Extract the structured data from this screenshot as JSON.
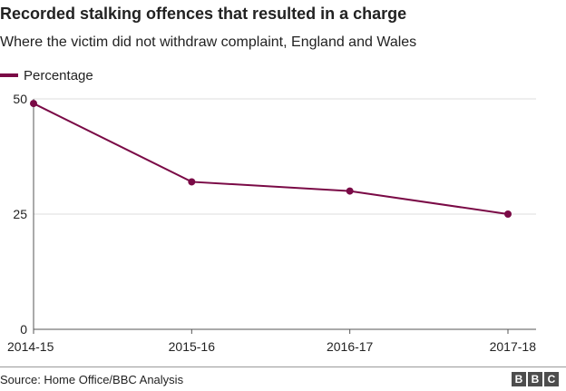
{
  "header": {
    "title": "Recorded stalking offences that resulted in a charge",
    "subtitle": "Where the victim did not withdraw complaint, England and Wales"
  },
  "legend": {
    "label": "Percentage"
  },
  "colors": {
    "series": "#7a0a46",
    "grid": "#dcdcdc",
    "axis": "#555555",
    "text": "#222222"
  },
  "chart_data": {
    "type": "line",
    "title": "Recorded stalking offences that resulted in a charge",
    "subtitle": "Where the victim did not withdraw complaint, England and Wales",
    "categories": [
      "2014-15",
      "2015-16",
      "2016-17",
      "2017-18"
    ],
    "series": [
      {
        "name": "Percentage",
        "values": [
          49,
          32,
          30,
          25
        ]
      }
    ],
    "ylim": [
      0,
      50
    ],
    "yticks": [
      0,
      25,
      50
    ],
    "grid": true,
    "legend": "top-left"
  },
  "footer": {
    "source": "Source: Home Office/BBC Analysis",
    "logo": [
      "B",
      "B",
      "C"
    ]
  }
}
